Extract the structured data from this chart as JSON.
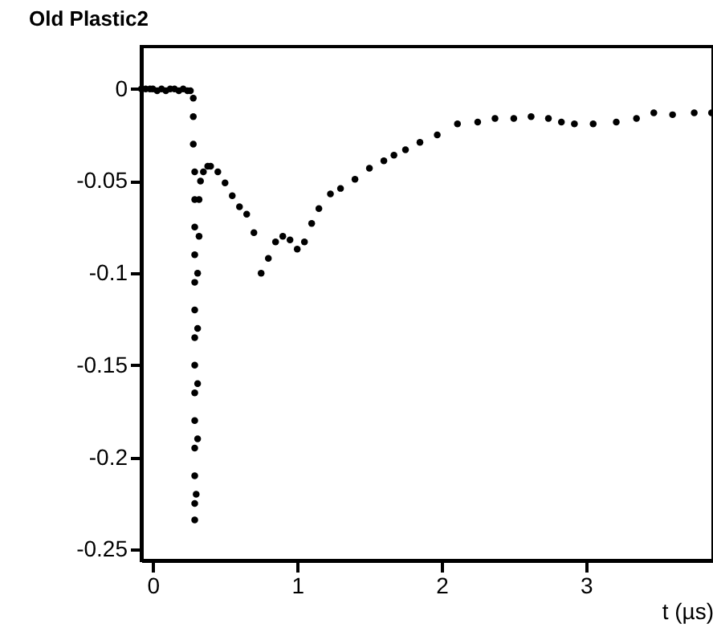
{
  "chart_data": {
    "type": "scatter",
    "title": "Old Plastic2",
    "xlabel": "t (µs)",
    "xlim": [
      -0.08,
      3.88
    ],
    "ylim": [
      -0.256,
      0.023
    ],
    "xticks": [
      0,
      1,
      2,
      3
    ],
    "yticks": [
      0,
      -0.05,
      -0.1,
      -0.15,
      -0.2,
      -0.25
    ],
    "marker": "circle",
    "grid": false,
    "series": [
      {
        "color": "#000000",
        "x": [
          -0.08,
          -0.05,
          -0.02,
          0,
          0.03,
          0.06,
          0.09,
          0.12,
          0.15,
          0.18,
          0.21,
          0.24,
          0.26,
          0.28,
          0.28,
          0.28,
          0.29,
          0.29,
          0.29,
          0.29,
          0.29,
          0.29,
          0.29,
          0.29,
          0.29,
          0.29,
          0.29,
          0.29,
          0.29,
          0.29,
          0.3,
          0.31,
          0.31,
          0.31,
          0.31,
          0.32,
          0.32,
          0.33,
          0.35,
          0.38,
          0.4,
          0.45,
          0.5,
          0.55,
          0.6,
          0.65,
          0.7,
          0.75,
          0.8,
          0.85,
          0.9,
          0.95,
          1.0,
          1.05,
          1.1,
          1.15,
          1.23,
          1.3,
          1.4,
          1.5,
          1.6,
          1.67,
          1.75,
          1.85,
          1.97,
          2.11,
          2.25,
          2.37,
          2.5,
          2.62,
          2.74,
          2.83,
          2.92,
          3.05,
          3.21,
          3.35,
          3.47,
          3.6,
          3.75,
          3.87
        ],
        "values": [
          0,
          0,
          0,
          0,
          -0.001,
          0,
          -0.001,
          0,
          0,
          -0.001,
          0,
          -0.001,
          -0.001,
          -0.005,
          -0.015,
          -0.03,
          -0.045,
          -0.06,
          -0.075,
          -0.09,
          -0.105,
          -0.12,
          -0.135,
          -0.15,
          -0.165,
          -0.18,
          -0.195,
          -0.21,
          -0.225,
          -0.234,
          -0.22,
          -0.19,
          -0.16,
          -0.13,
          -0.1,
          -0.08,
          -0.06,
          -0.05,
          -0.045,
          -0.042,
          -0.042,
          -0.045,
          -0.051,
          -0.058,
          -0.064,
          -0.068,
          -0.078,
          -0.1,
          -0.092,
          -0.083,
          -0.08,
          -0.082,
          -0.087,
          -0.083,
          -0.073,
          -0.065,
          -0.057,
          -0.054,
          -0.049,
          -0.043,
          -0.039,
          -0.036,
          -0.033,
          -0.029,
          -0.025,
          -0.019,
          -0.018,
          -0.016,
          -0.016,
          -0.015,
          -0.016,
          -0.018,
          -0.019,
          -0.019,
          -0.018,
          -0.016,
          -0.013,
          -0.014,
          -0.013,
          -0.013
        ]
      }
    ]
  }
}
